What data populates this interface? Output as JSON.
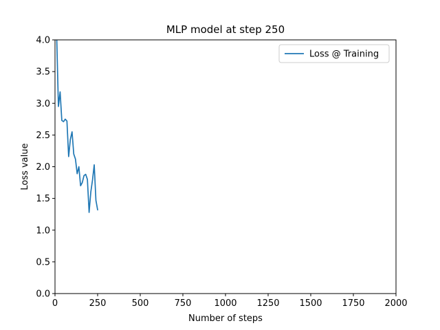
{
  "chart_data": {
    "type": "line",
    "title": "MLP model at step 250",
    "xlabel": "Number of steps",
    "ylabel": "Loss value",
    "xlim": [
      0,
      2000
    ],
    "ylim": [
      0,
      4.0
    ],
    "xticks": [
      0,
      250,
      500,
      750,
      1000,
      1250,
      1500,
      1750,
      2000
    ],
    "yticks": [
      0.0,
      0.5,
      1.0,
      1.5,
      2.0,
      2.5,
      3.0,
      3.5,
      4.0
    ],
    "xtick_labels": [
      "0",
      "250",
      "500",
      "750",
      "1000",
      "1250",
      "1500",
      "1750",
      "2000"
    ],
    "ytick_labels": [
      "0.0",
      "0.5",
      "1.0",
      "1.5",
      "2.0",
      "2.5",
      "3.0",
      "3.5",
      "4.0"
    ],
    "grid": false,
    "legend_position": "top-right",
    "series": [
      {
        "name": "Loss @ Training",
        "color": "#1f77b4",
        "x": [
          10,
          20,
          30,
          40,
          50,
          60,
          70,
          80,
          90,
          100,
          110,
          120,
          130,
          140,
          150,
          160,
          170,
          180,
          190,
          200,
          210,
          220,
          230,
          240,
          250
        ],
        "y": [
          4.05,
          2.95,
          3.18,
          2.73,
          2.71,
          2.75,
          2.72,
          2.16,
          2.43,
          2.55,
          2.2,
          2.12,
          1.89,
          2.0,
          1.7,
          1.75,
          1.86,
          1.88,
          1.8,
          1.28,
          1.6,
          1.79,
          2.03,
          1.47,
          1.32
        ]
      }
    ]
  }
}
